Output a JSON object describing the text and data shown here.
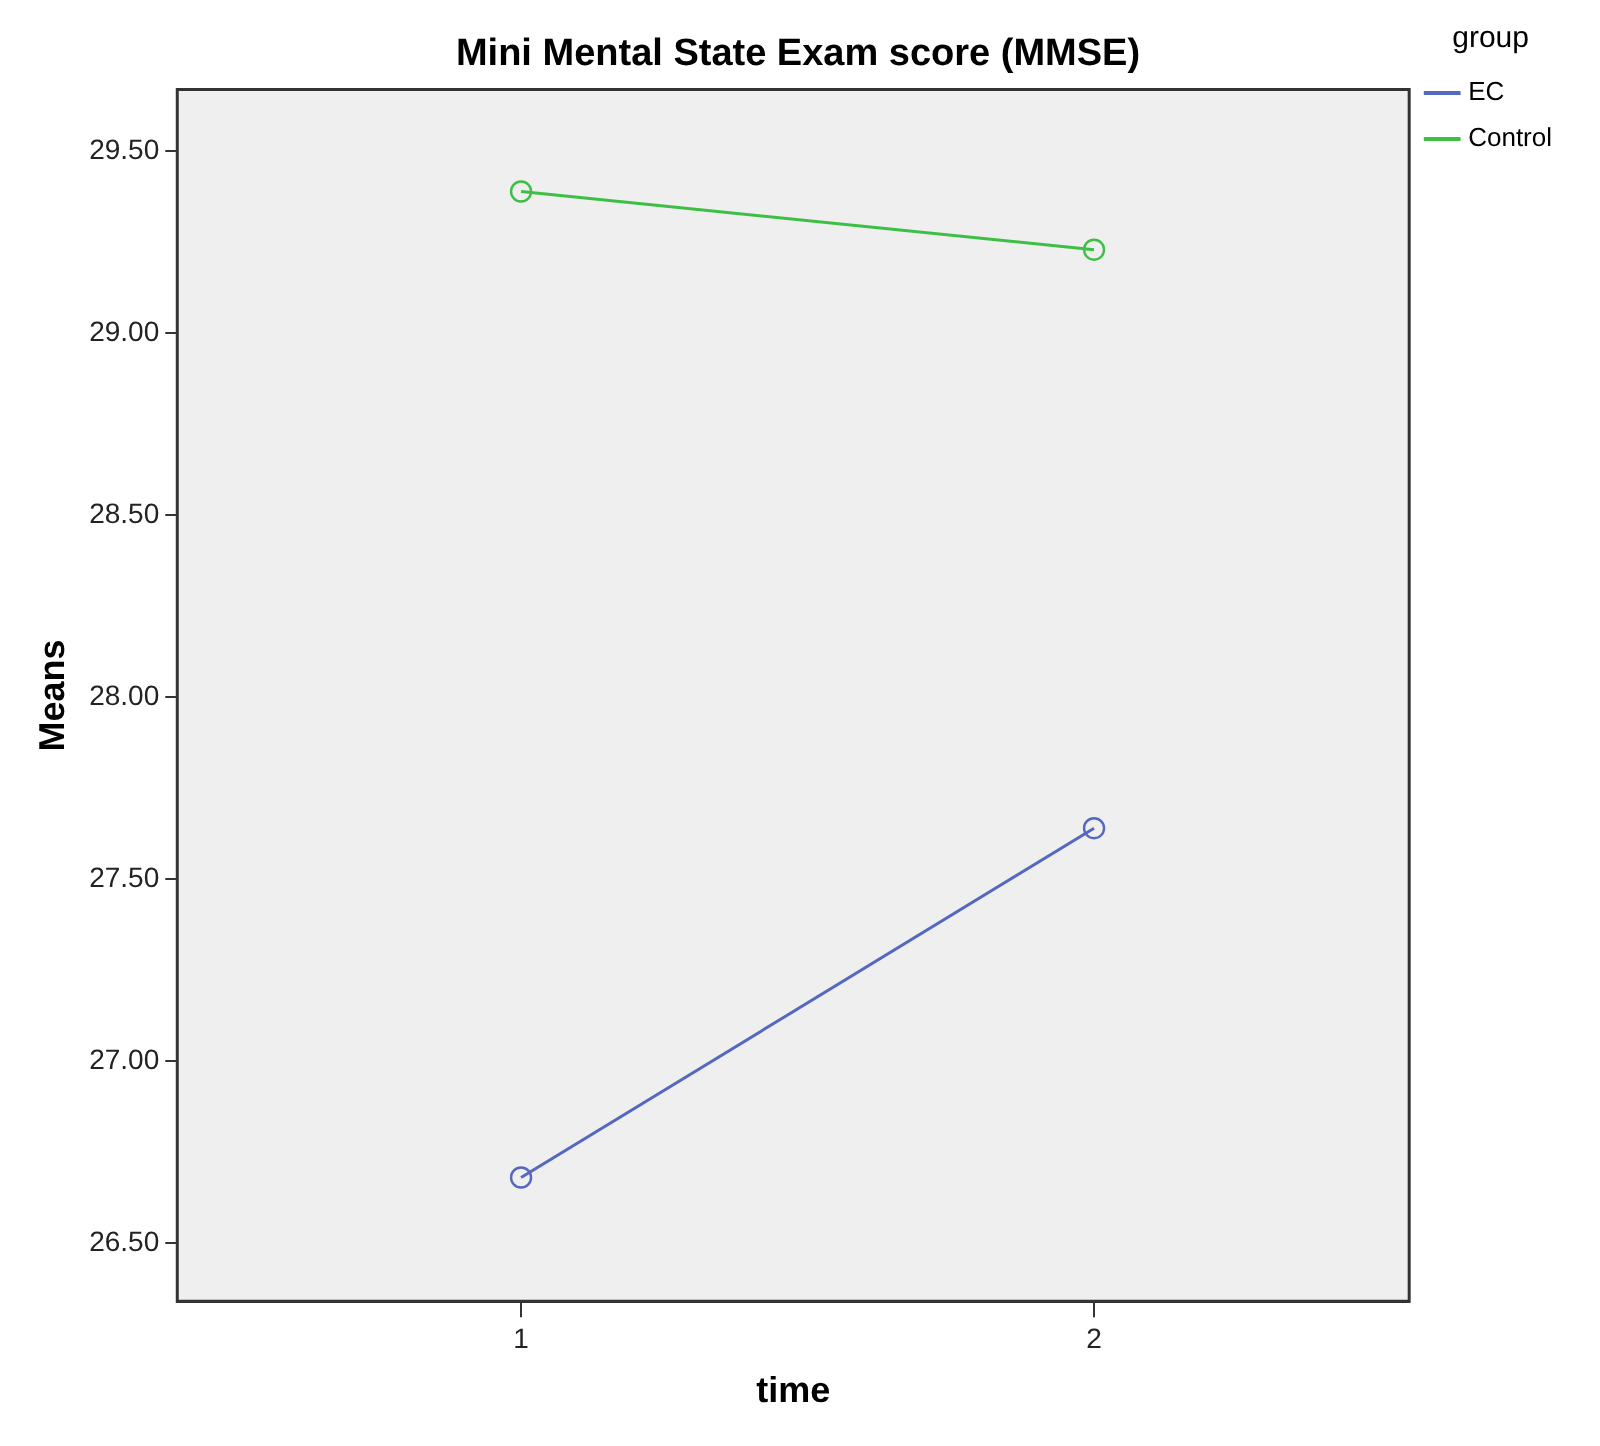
{
  "chart_data": {
    "type": "line",
    "title": "Mini Mental State Exam score (MMSE)",
    "xlabel": "time",
    "ylabel": "Means",
    "legend_title": "group",
    "legend": "right",
    "marker": "circle",
    "line_style": "solid",
    "x": [
      1,
      2
    ],
    "series": [
      {
        "name": "EC",
        "color": "#5468c0",
        "values": [
          26.68,
          27.64
        ]
      },
      {
        "name": "Control",
        "color": "#3dbf45",
        "values": [
          29.39,
          29.23
        ]
      }
    ],
    "xlim": [
      0.4,
      2.55
    ],
    "xticks": [
      1,
      2
    ],
    "ylim": [
      26.34,
      29.67
    ],
    "yticks": [
      {
        "value": 26.5,
        "label": "26.50"
      },
      {
        "value": 27,
        "label": "27.00"
      },
      {
        "value": 27.5,
        "label": "27.50"
      },
      {
        "value": 28,
        "label": "28.00"
      },
      {
        "value": 28.5,
        "label": "28.50"
      },
      {
        "value": 29,
        "label": "29.00"
      },
      {
        "value": 29.5,
        "label": "29.50"
      }
    ]
  }
}
